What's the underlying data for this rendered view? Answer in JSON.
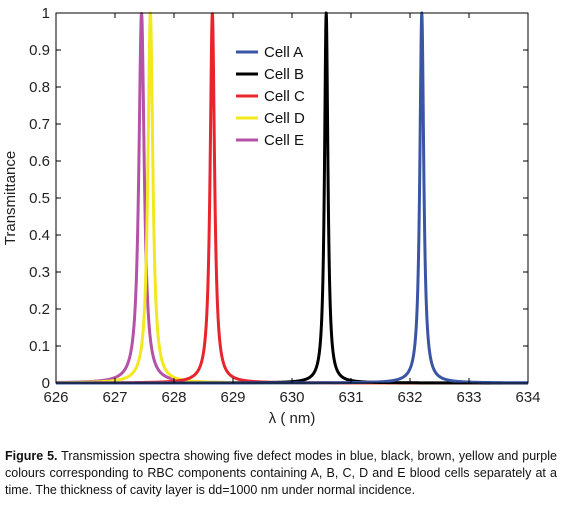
{
  "chart_data": {
    "type": "line",
    "title": "",
    "xlabel": "λ ( nm)",
    "ylabel": "Transmittance",
    "xlim": [
      626,
      634
    ],
    "ylim": [
      0,
      1
    ],
    "xticks": [
      "626",
      "627",
      "628",
      "629",
      "630",
      "631",
      "632",
      "633",
      "634"
    ],
    "yticks": [
      "0",
      "0.1",
      "0.2",
      "0.3",
      "0.4",
      "0.5",
      "0.6",
      "0.7",
      "0.8",
      "0.9",
      "1"
    ],
    "legend_position": "top-right",
    "grid": false,
    "series": [
      {
        "name": "Cell A",
        "color": "#3a55a4",
        "peak_x": 632.2,
        "peak_y": 1.0,
        "fwhm": 0.08
      },
      {
        "name": "Cell B",
        "color": "#000000",
        "peak_x": 630.58,
        "peak_y": 1.0,
        "fwhm": 0.07
      },
      {
        "name": "Cell C",
        "color": "#e8242c",
        "peak_x": 628.65,
        "peak_y": 1.0,
        "fwhm": 0.09
      },
      {
        "name": "Cell D",
        "color": "#f3e81e",
        "peak_x": 627.6,
        "peak_y": 1.0,
        "fwhm": 0.1
      },
      {
        "name": "Cell E",
        "color": "#b452a7",
        "peak_x": 627.45,
        "peak_y": 1.0,
        "fwhm": 0.11
      }
    ]
  },
  "caption": {
    "label": "Figure 5.",
    "text": " Transmission spectra showing five defect modes in blue, black, brown, yellow and purple colours corresponding to RBC components containing A, B, C, D and E blood cells separately at a time. The thickness of cavity layer is dd=1000 nm under normal incidence."
  }
}
